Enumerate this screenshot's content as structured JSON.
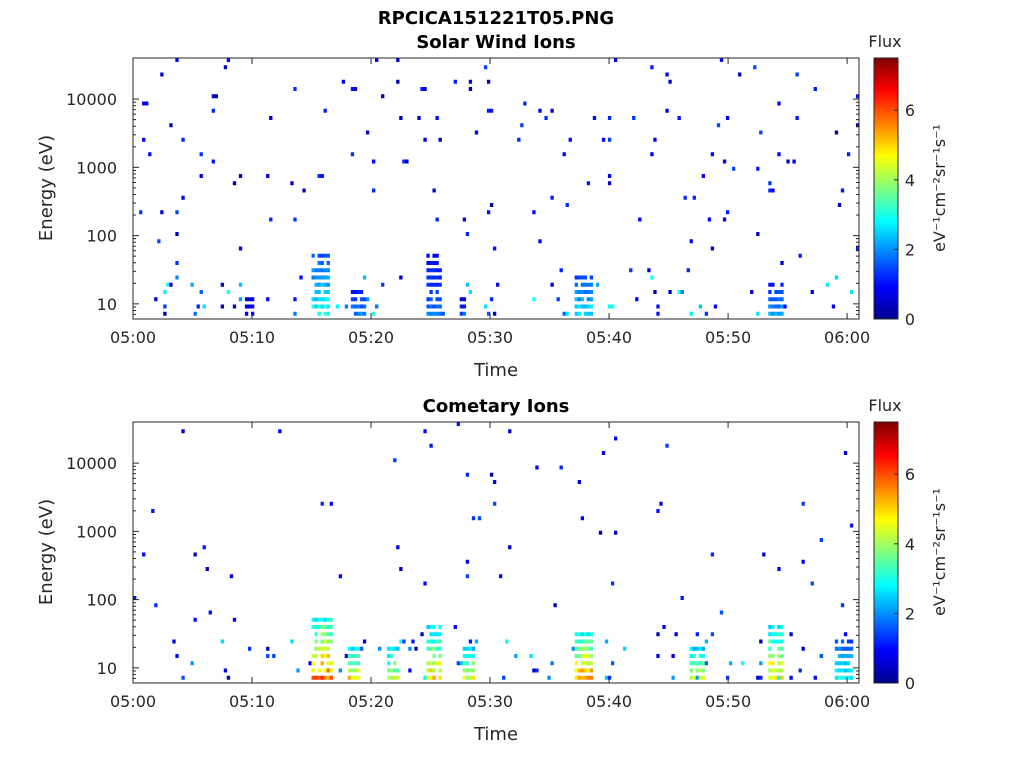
{
  "figure": {
    "title": "RPCICA151221T05.PNG"
  },
  "chart_data": [
    {
      "type": "heatmap",
      "title": "Solar Wind Ions",
      "xlabel": "Time",
      "ylabel": "Energy (eV)",
      "x_ticks": [
        "05:00",
        "05:10",
        "05:20",
        "05:30",
        "05:40",
        "05:50",
        "06:00"
      ],
      "x_range": [
        "05:00",
        "06:01"
      ],
      "y_ticks": [
        "10",
        "100",
        "1000",
        "10000"
      ],
      "y_range": [
        6,
        40000
      ],
      "y_scale": "log",
      "colorbar": {
        "title": "Flux",
        "label": "eV⁻¹cm⁻²sr⁻¹s⁻¹",
        "range": [
          0,
          7.5
        ],
        "ticks": [
          "0",
          "2",
          "4",
          "6"
        ],
        "colormap": "jet"
      },
      "background_seed": 11,
      "background_density": 0.02,
      "background_low_energy_density": 0.05,
      "features": [
        {
          "time_min": 15.0,
          "dur_min": 1.5,
          "e_min": 6,
          "e_max": 45,
          "flux": 3.4
        },
        {
          "time_min": 18.5,
          "dur_min": 1.0,
          "e_min": 6,
          "e_max": 15,
          "flux": 2.2
        },
        {
          "time_min": 24.8,
          "dur_min": 1.0,
          "e_min": 6,
          "e_max": 45,
          "flux": 2.0
        },
        {
          "time_min": 37.3,
          "dur_min": 1.2,
          "e_min": 6,
          "e_max": 25,
          "flux": 3.0
        },
        {
          "time_min": 53.5,
          "dur_min": 1.0,
          "e_min": 6,
          "e_max": 20,
          "flux": 2.4
        },
        {
          "time_min": 9.5,
          "dur_min": 0.6,
          "e_min": 6,
          "e_max": 12,
          "flux": 1.2
        },
        {
          "time_min": 27.5,
          "dur_min": 0.6,
          "e_min": 6,
          "e_max": 12,
          "flux": 1.5
        }
      ]
    },
    {
      "type": "heatmap",
      "title": "Cometary Ions",
      "xlabel": "Time",
      "ylabel": "Energy (eV)",
      "x_ticks": [
        "05:00",
        "05:10",
        "05:20",
        "05:30",
        "05:40",
        "05:50",
        "06:00"
      ],
      "x_range": [
        "05:00",
        "06:01"
      ],
      "y_ticks": [
        "10",
        "100",
        "1000",
        "10000"
      ],
      "y_range": [
        6,
        40000
      ],
      "y_scale": "log",
      "colorbar": {
        "title": "Flux",
        "label": "eV⁻¹cm⁻²sr⁻¹s⁻¹",
        "range": [
          0,
          7.5
        ],
        "ticks": [
          "0",
          "2",
          "4",
          "6"
        ],
        "colormap": "jet"
      },
      "background_seed": 29,
      "background_density": 0.008,
      "background_low_energy_density": 0.05,
      "features": [
        {
          "time_min": 15.2,
          "dur_min": 1.4,
          "e_min": 6,
          "e_max": 45,
          "flux": 6.5
        },
        {
          "time_min": 18.2,
          "dur_min": 0.8,
          "e_min": 6,
          "e_max": 16,
          "flux": 5.5
        },
        {
          "time_min": 21.5,
          "dur_min": 0.8,
          "e_min": 6,
          "e_max": 20,
          "flux": 5.0
        },
        {
          "time_min": 24.8,
          "dur_min": 1.0,
          "e_min": 6,
          "e_max": 40,
          "flux": 5.5
        },
        {
          "time_min": 27.8,
          "dur_min": 0.8,
          "e_min": 6,
          "e_max": 20,
          "flux": 5.0
        },
        {
          "time_min": 37.3,
          "dur_min": 1.3,
          "e_min": 6,
          "e_max": 30,
          "flux": 6.2
        },
        {
          "time_min": 47.0,
          "dur_min": 0.8,
          "e_min": 6,
          "e_max": 20,
          "flux": 5.0
        },
        {
          "time_min": 53.5,
          "dur_min": 1.0,
          "e_min": 6,
          "e_max": 35,
          "flux": 5.8
        },
        {
          "time_min": 59.0,
          "dur_min": 1.3,
          "e_min": 6,
          "e_max": 25,
          "flux": 3.2
        }
      ]
    }
  ]
}
